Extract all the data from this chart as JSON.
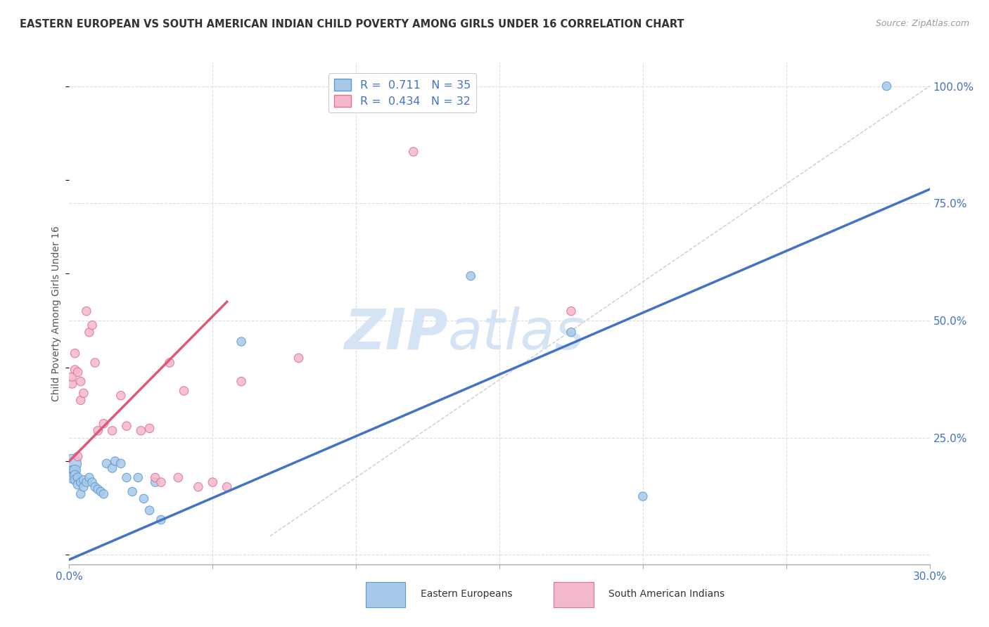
{
  "title": "EASTERN EUROPEAN VS SOUTH AMERICAN INDIAN CHILD POVERTY AMONG GIRLS UNDER 16 CORRELATION CHART",
  "source": "Source: ZipAtlas.com",
  "ylabel": "Child Poverty Among Girls Under 16",
  "xmin": 0.0,
  "xmax": 0.3,
  "ymin": -0.02,
  "ymax": 1.05,
  "blue_R": 0.711,
  "blue_N": 35,
  "pink_R": 0.434,
  "pink_N": 32,
  "blue_color": "#a8c8e8",
  "blue_edge_color": "#5b9bd5",
  "blue_line_color": "#4472c4",
  "pink_color": "#f4b8cc",
  "pink_edge_color": "#e07090",
  "pink_line_color": "#e05878",
  "watermark_zip": "ZIP",
  "watermark_atlas": "atlas",
  "watermark_color": "#d5e4f5",
  "background_color": "#ffffff",
  "grid_color": "#dddddd",
  "blue_scatter_x": [
    0.001,
    0.001,
    0.001,
    0.002,
    0.002,
    0.002,
    0.003,
    0.003,
    0.004,
    0.004,
    0.005,
    0.005,
    0.006,
    0.007,
    0.008,
    0.009,
    0.01,
    0.011,
    0.012,
    0.013,
    0.015,
    0.016,
    0.018,
    0.02,
    0.022,
    0.024,
    0.026,
    0.028,
    0.03,
    0.032,
    0.06,
    0.14,
    0.175,
    0.2,
    0.285
  ],
  "blue_scatter_y": [
    0.195,
    0.175,
    0.165,
    0.18,
    0.17,
    0.16,
    0.165,
    0.15,
    0.155,
    0.13,
    0.16,
    0.145,
    0.155,
    0.165,
    0.155,
    0.145,
    0.14,
    0.135,
    0.13,
    0.195,
    0.185,
    0.2,
    0.195,
    0.165,
    0.135,
    0.165,
    0.12,
    0.095,
    0.155,
    0.075,
    0.455,
    0.595,
    0.475,
    0.125,
    1.0
  ],
  "blue_scatter_sizes": [
    350,
    200,
    130,
    130,
    100,
    90,
    90,
    90,
    80,
    80,
    80,
    80,
    80,
    80,
    80,
    80,
    80,
    80,
    80,
    80,
    80,
    80,
    80,
    80,
    80,
    80,
    80,
    80,
    80,
    80,
    80,
    80,
    80,
    80,
    80
  ],
  "pink_scatter_x": [
    0.001,
    0.001,
    0.002,
    0.002,
    0.003,
    0.003,
    0.004,
    0.004,
    0.005,
    0.006,
    0.007,
    0.008,
    0.009,
    0.01,
    0.012,
    0.015,
    0.018,
    0.02,
    0.025,
    0.028,
    0.03,
    0.032,
    0.035,
    0.038,
    0.04,
    0.045,
    0.05,
    0.055,
    0.06,
    0.08,
    0.12,
    0.175
  ],
  "pink_scatter_y": [
    0.365,
    0.38,
    0.395,
    0.43,
    0.39,
    0.21,
    0.33,
    0.37,
    0.345,
    0.52,
    0.475,
    0.49,
    0.41,
    0.265,
    0.28,
    0.265,
    0.34,
    0.275,
    0.265,
    0.27,
    0.165,
    0.155,
    0.41,
    0.165,
    0.35,
    0.145,
    0.155,
    0.145,
    0.37,
    0.42,
    0.86,
    0.52
  ],
  "pink_scatter_sizes": [
    80,
    80,
    80,
    80,
    80,
    80,
    80,
    80,
    80,
    80,
    80,
    80,
    80,
    80,
    80,
    80,
    80,
    80,
    80,
    80,
    80,
    80,
    80,
    80,
    80,
    80,
    80,
    80,
    80,
    80,
    80,
    80
  ],
  "blue_line_x0": 0.0,
  "blue_line_y0": -0.01,
  "blue_line_x1": 0.3,
  "blue_line_y1": 0.78,
  "pink_line_x0": 0.0,
  "pink_line_y0": 0.2,
  "pink_line_x1": 0.055,
  "pink_line_y1": 0.54,
  "diag_line_x0": 0.07,
  "diag_line_y0": 0.04,
  "diag_line_x1": 0.3,
  "diag_line_y1": 1.0
}
